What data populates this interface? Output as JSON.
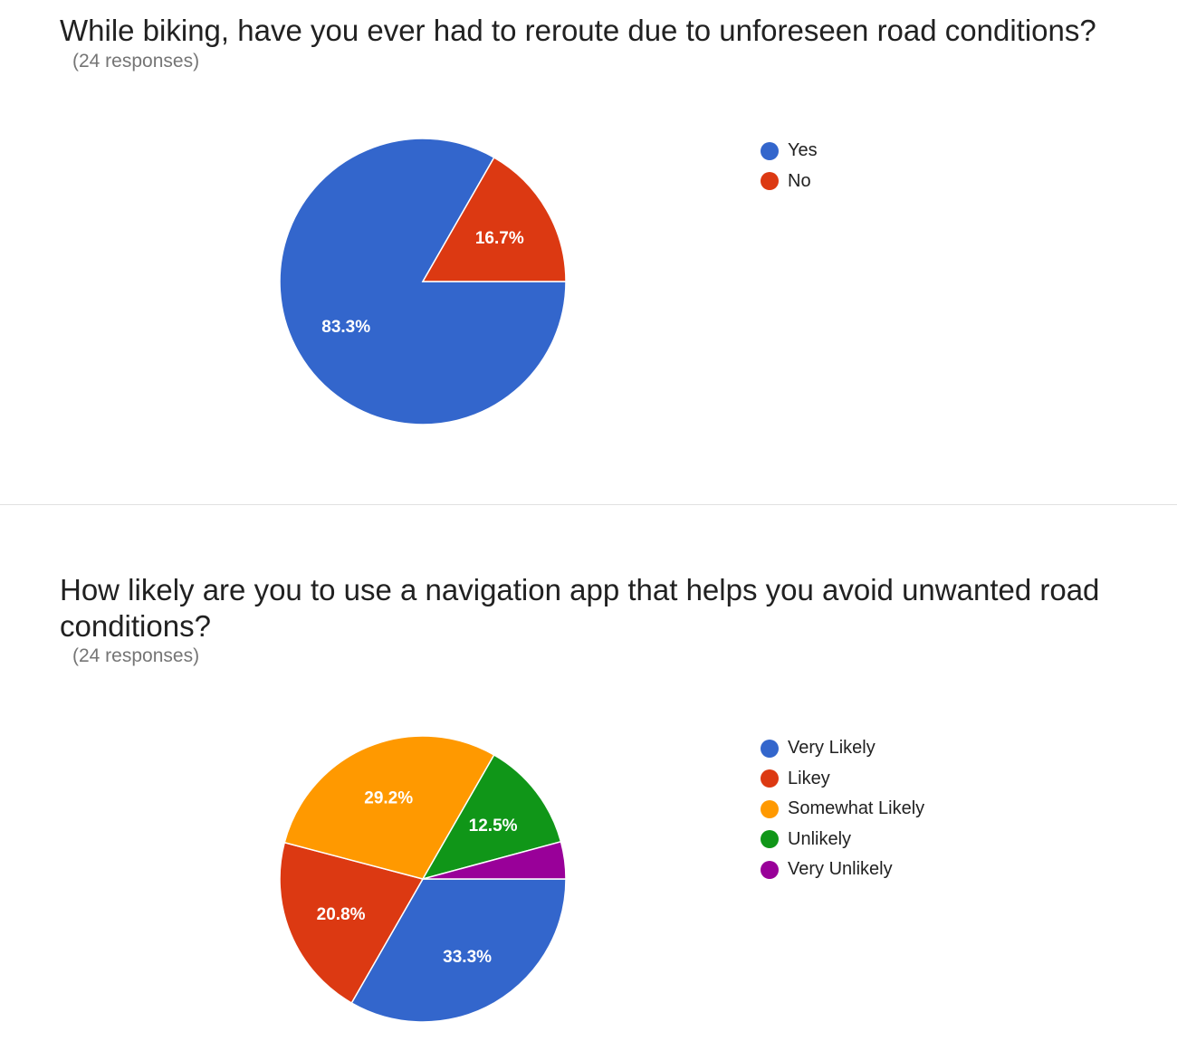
{
  "chart_data": [
    {
      "type": "pie",
      "title": "While biking, have you ever had to reroute due to unforeseen road conditions?",
      "subtitle": "(24 responses)",
      "legend_position": "right",
      "slices": [
        {
          "label": "Yes",
          "value": 83.3,
          "display": "83.3%",
          "color": "#3366cc"
        },
        {
          "label": "No",
          "value": 16.7,
          "display": "16.7%",
          "color": "#dc3912"
        }
      ]
    },
    {
      "type": "pie",
      "title": "How likely are you to use a navigation app that helps you avoid unwanted road conditions?",
      "subtitle": "(24 responses)",
      "legend_position": "right",
      "slices": [
        {
          "label": "Very Likely",
          "value": 33.3,
          "display": "33.3%",
          "color": "#3366cc"
        },
        {
          "label": "Likey",
          "value": 20.8,
          "display": "20.8%",
          "color": "#dc3912"
        },
        {
          "label": "Somewhat Likely",
          "value": 29.2,
          "display": "29.2%",
          "color": "#ff9900"
        },
        {
          "label": "Unlikely",
          "value": 12.5,
          "display": "12.5%",
          "color": "#109618"
        },
        {
          "label": "Very Unlikely",
          "value": 4.2,
          "display": "",
          "color": "#990099"
        }
      ]
    }
  ]
}
